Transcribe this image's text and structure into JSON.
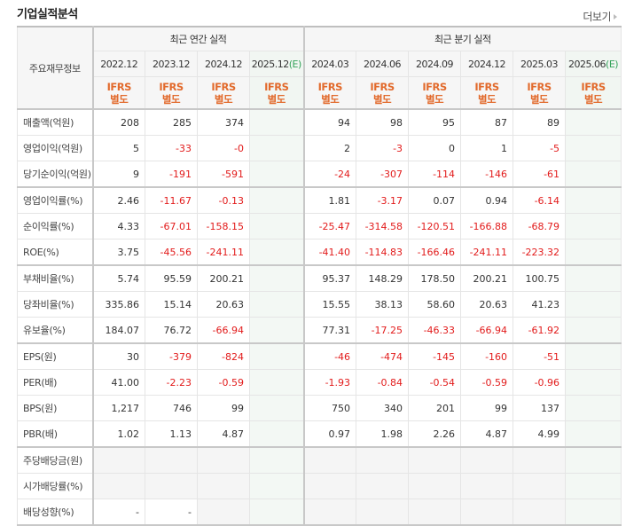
{
  "section_title": "기업실적분석",
  "more_link": "더보기",
  "header": {
    "row_label": "주요재무정보",
    "annual_group": "최근 연간 실적",
    "quarter_group": "최근 분기 실적",
    "annual_periods": [
      "2022.12",
      "2023.12",
      "2024.12",
      "2025.12"
    ],
    "quarter_periods": [
      "2024.03",
      "2024.06",
      "2024.09",
      "2024.12",
      "2025.03",
      "2025.06"
    ],
    "estimate_mark": "(E)",
    "ifrs_top": "IFRS",
    "ifrs_bottom": "별도"
  },
  "rows": [
    {
      "label": "매출액(억원)",
      "annual": [
        "208",
        "285",
        "374",
        ""
      ],
      "quarter": [
        "94",
        "98",
        "95",
        "87",
        "89",
        ""
      ]
    },
    {
      "label": "영업이익(억원)",
      "annual": [
        "5",
        "-33",
        "-0",
        ""
      ],
      "quarter": [
        "2",
        "-3",
        "0",
        "1",
        "-5",
        ""
      ]
    },
    {
      "label": "당기순이익(억원)",
      "annual": [
        "9",
        "-191",
        "-591",
        ""
      ],
      "quarter": [
        "-24",
        "-307",
        "-114",
        "-146",
        "-61",
        ""
      ]
    },
    {
      "label": "영업이익률(%)",
      "annual": [
        "2.46",
        "-11.67",
        "-0.13",
        ""
      ],
      "quarter": [
        "1.81",
        "-3.17",
        "0.07",
        "0.94",
        "-6.14",
        ""
      ]
    },
    {
      "label": "순이익률(%)",
      "annual": [
        "4.33",
        "-67.01",
        "-158.15",
        ""
      ],
      "quarter": [
        "-25.47",
        "-314.58",
        "-120.51",
        "-166.88",
        "-68.79",
        ""
      ]
    },
    {
      "label": "ROE(%)",
      "annual": [
        "3.75",
        "-45.56",
        "-241.11",
        ""
      ],
      "quarter": [
        "-41.40",
        "-114.83",
        "-166.46",
        "-241.11",
        "-223.32",
        ""
      ]
    },
    {
      "label": "부채비율(%)",
      "annual": [
        "5.74",
        "95.59",
        "200.21",
        ""
      ],
      "quarter": [
        "95.37",
        "148.29",
        "178.50",
        "200.21",
        "100.75",
        ""
      ]
    },
    {
      "label": "당좌비율(%)",
      "annual": [
        "335.86",
        "15.14",
        "20.63",
        ""
      ],
      "quarter": [
        "15.55",
        "38.13",
        "58.60",
        "20.63",
        "41.23",
        ""
      ]
    },
    {
      "label": "유보율(%)",
      "annual": [
        "184.07",
        "76.72",
        "-66.94",
        ""
      ],
      "quarter": [
        "77.31",
        "-17.25",
        "-46.33",
        "-66.94",
        "-61.92",
        ""
      ]
    },
    {
      "label": "EPS(원)",
      "annual": [
        "30",
        "-379",
        "-824",
        ""
      ],
      "quarter": [
        "-46",
        "-474",
        "-145",
        "-160",
        "-51",
        ""
      ]
    },
    {
      "label": "PER(배)",
      "annual": [
        "41.00",
        "-2.23",
        "-0.59",
        ""
      ],
      "quarter": [
        "-1.93",
        "-0.84",
        "-0.54",
        "-0.59",
        "-0.96",
        ""
      ]
    },
    {
      "label": "BPS(원)",
      "annual": [
        "1,217",
        "746",
        "99",
        ""
      ],
      "quarter": [
        "750",
        "340",
        "201",
        "99",
        "137",
        ""
      ]
    },
    {
      "label": "PBR(배)",
      "annual": [
        "1.02",
        "1.13",
        "4.87",
        ""
      ],
      "quarter": [
        "0.97",
        "1.98",
        "2.26",
        "4.87",
        "4.99",
        ""
      ]
    },
    {
      "label": "주당배당금(원)",
      "annual": [
        "",
        "",
        "",
        ""
      ],
      "quarter": [
        "",
        "",
        "",
        "",
        "",
        ""
      ]
    },
    {
      "label": "시가배당률(%)",
      "annual": [
        "",
        "",
        "",
        ""
      ],
      "quarter": [
        "",
        "",
        "",
        "",
        "",
        ""
      ]
    },
    {
      "label": "배당성향(%)",
      "annual": [
        "-",
        "-",
        "",
        ""
      ],
      "quarter": [
        "",
        "",
        "",
        "",
        "",
        ""
      ]
    }
  ],
  "colors": {
    "negative": "#e21b1b",
    "ifrs": "#e26a2c",
    "estimate": "#34a35a",
    "estimate_bg": "#f3f8f4"
  }
}
